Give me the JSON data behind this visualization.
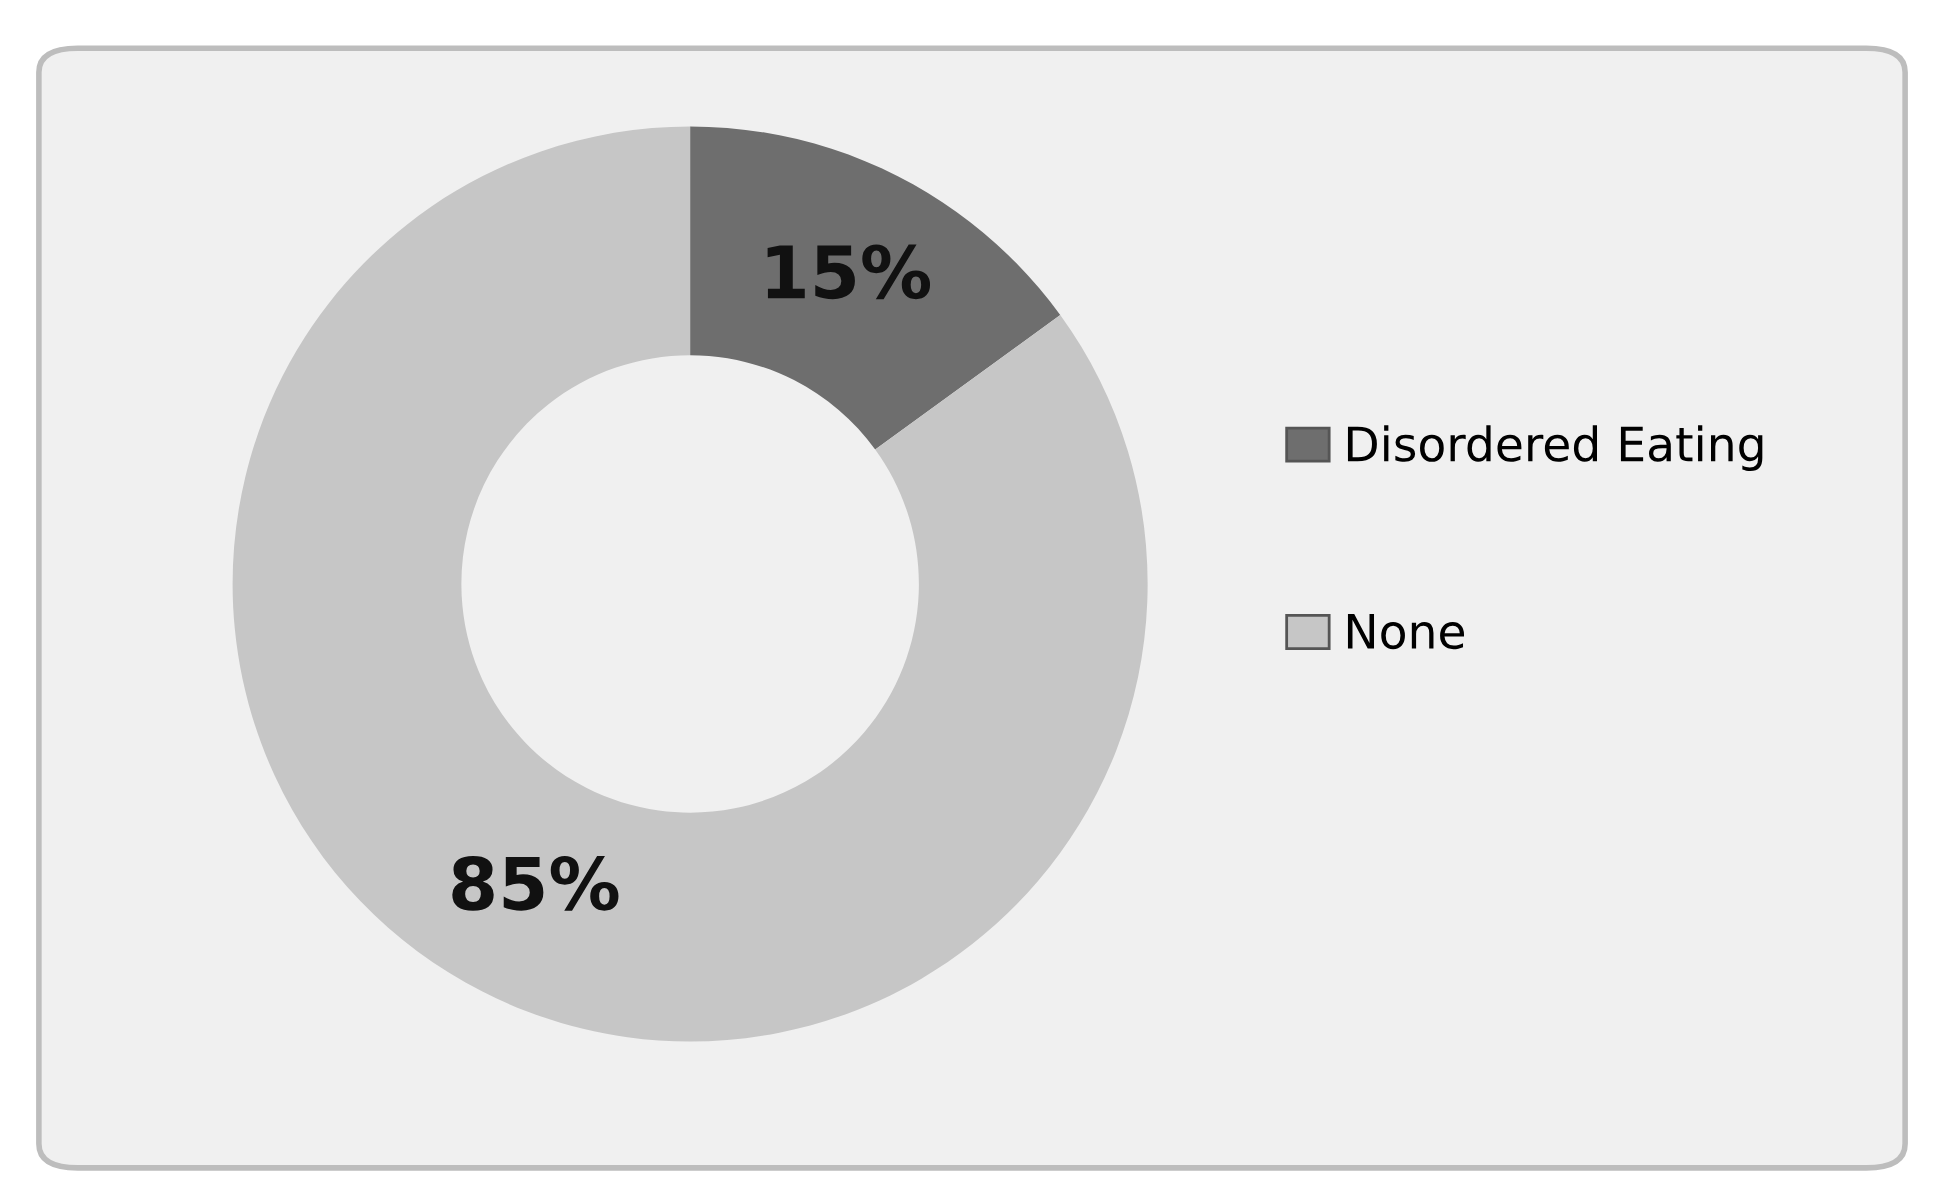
{
  "chart_data": {
    "type": "donut",
    "categories": [
      "Disordered Eating",
      "None"
    ],
    "values": [
      15,
      85
    ],
    "colors": [
      "#6e6e6e",
      "#c6c6c6"
    ],
    "value_labels": [
      "15%",
      "85%"
    ],
    "legend": "right"
  }
}
